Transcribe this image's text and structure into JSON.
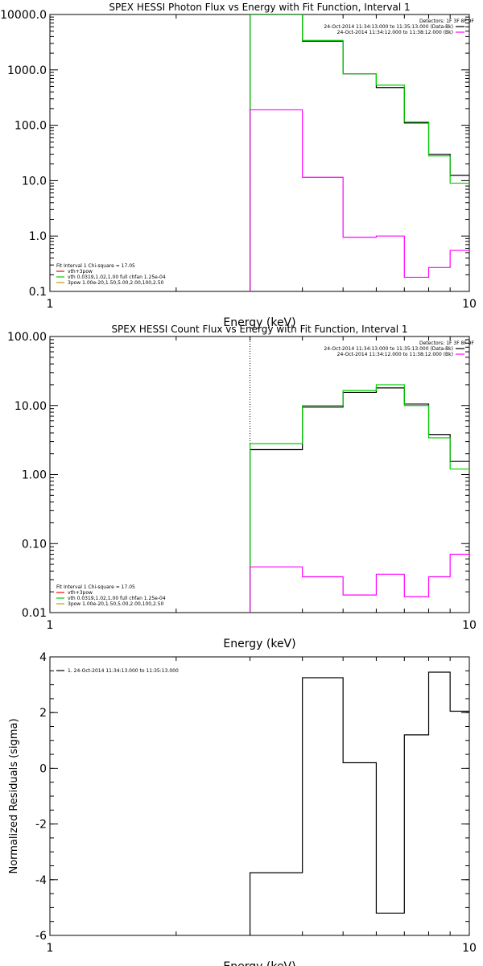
{
  "chart_data": [
    {
      "type": "line",
      "title": "SPEX HESSI Photon Flux vs Energy with Fit Function, Interval 1",
      "xlabel": "Energy (keV)",
      "ylabel": "",
      "xscale": "log",
      "yscale": "log",
      "xlim": [
        1,
        10
      ],
      "ylim": [
        0.1,
        10000
      ],
      "xticks": [
        {
          "value": 1,
          "label": "1"
        },
        {
          "value": 10,
          "label": "10"
        }
      ],
      "yticks": [
        {
          "value": 0.1,
          "label": "0.1"
        },
        {
          "value": 1,
          "label": "1.0"
        },
        {
          "value": 10,
          "label": "10.0"
        },
        {
          "value": 100,
          "label": "100.0"
        },
        {
          "value": 1000,
          "label": "1000.0"
        },
        {
          "value": 10000,
          "label": "10000.0"
        }
      ],
      "bin_edges": [
        3,
        4,
        5,
        6,
        7,
        8,
        9,
        10
      ],
      "vline": {
        "x": 3
      },
      "series": [
        {
          "color": "#000000",
          "values": [
            10000,
            3300,
            850,
            480,
            110,
            30,
            12.5
          ]
        },
        {
          "color": "#00cc00",
          "values": [
            10000,
            3400,
            850,
            530,
            115,
            28,
            9
          ]
        },
        {
          "color": "#ff00ff",
          "values": [
            190,
            11.5,
            0.95,
            1.0,
            0.18,
            0.27,
            0.55
          ]
        }
      ],
      "legend_top": {
        "placement": "top-right",
        "header": "Detectors: 1F 3F 8F 9F",
        "entries": [
          {
            "label": "24-Oct-2014 11:34:13.000 to 11:35:13.000 (Data-Bk)",
            "color": "#000000"
          },
          {
            "label": "24-Oct-2014 11:34:12.000 to 11:38:12.000 (Bk)",
            "color": "#ff00ff"
          }
        ]
      },
      "legend_bottom": {
        "placement": "bottom-left",
        "header": "Fit Interval 1    Chi-square = 17.05",
        "entries": [
          {
            "label": "vth+3pow",
            "color": "#ff0000"
          },
          {
            "label": "vth 0.0319,1.02,1.00  full chfan 1.25e-04",
            "color": "#00cc00"
          },
          {
            "label": "3pow 1.00e-20,1.50,5.00,2.00,100,2.50",
            "color": "#cc9900"
          }
        ]
      }
    },
    {
      "type": "line",
      "title": "SPEX HESSI Count Flux vs Energy with Fit Function, Interval 1",
      "xlabel": "Energy (keV)",
      "ylabel": "",
      "xscale": "log",
      "yscale": "log",
      "xlim": [
        1,
        10
      ],
      "ylim": [
        0.01,
        100
      ],
      "xticks": [
        {
          "value": 1,
          "label": "1"
        },
        {
          "value": 10,
          "label": "10"
        }
      ],
      "yticks": [
        {
          "value": 0.01,
          "label": "0.01"
        },
        {
          "value": 0.1,
          "label": "0.10"
        },
        {
          "value": 1,
          "label": "1.00"
        },
        {
          "value": 10,
          "label": "10.00"
        },
        {
          "value": 100,
          "label": "100.00"
        }
      ],
      "bin_edges": [
        3,
        4,
        5,
        6,
        7,
        8,
        9,
        10
      ],
      "vline": {
        "x": 3,
        "style": "dotted"
      },
      "series": [
        {
          "color": "#000000",
          "values": [
            2.3,
            9.5,
            15.5,
            18,
            10.5,
            3.8,
            1.55
          ]
        },
        {
          "color": "#00cc00",
          "values": [
            2.8,
            10,
            16.5,
            20,
            10,
            3.4,
            1.2
          ]
        },
        {
          "color": "#ff00ff",
          "values": [
            0.046,
            0.033,
            0.018,
            0.036,
            0.017,
            0.033,
            0.07
          ]
        }
      ],
      "legend_top": {
        "placement": "top-right",
        "header": "Detectors: 1F 3F 8F 9F",
        "entries": [
          {
            "label": "24-Oct-2014 11:34:13.000 to 11:35:13.000 (Data-Bk)",
            "color": "#000000"
          },
          {
            "label": "24-Oct-2014 11:34:12.000 to 11:38:12.000 (Bk)",
            "color": "#ff00ff"
          }
        ]
      },
      "legend_bottom": {
        "placement": "bottom-left",
        "header": "Fit Interval 1    Chi-square = 17.05",
        "entries": [
          {
            "label": "vth+3pow",
            "color": "#ff0000"
          },
          {
            "label": "vth 0.0319,1.02,1.00  full chfan 1.25e-04",
            "color": "#00cc00"
          },
          {
            "label": "3pow 1.00e-20,1.50,5.00,2.00,100,2.50",
            "color": "#cc9900"
          }
        ]
      }
    },
    {
      "type": "line",
      "title": "",
      "xlabel": "Energy (keV)",
      "ylabel": "Normalized Residuals (sigma)",
      "xscale": "log",
      "yscale": "linear",
      "xlim": [
        1,
        10
      ],
      "ylim": [
        -6,
        4
      ],
      "xticks": [
        {
          "value": 1,
          "label": "1"
        },
        {
          "value": 10,
          "label": "10"
        }
      ],
      "yticks": [
        {
          "value": -6,
          "label": "-6"
        },
        {
          "value": -4,
          "label": "-4"
        },
        {
          "value": -2,
          "label": "-2"
        },
        {
          "value": 0,
          "label": "0"
        },
        {
          "value": 2,
          "label": "2"
        },
        {
          "value": 4,
          "label": "4"
        }
      ],
      "bin_edges": [
        3,
        4,
        5,
        6,
        7,
        8,
        9,
        10
      ],
      "series": [
        {
          "color": "#000000",
          "values": [
            -3.75,
            3.25,
            0.2,
            -5.2,
            1.2,
            3.45,
            2.05
          ]
        }
      ],
      "legend_top": {
        "placement": "top-left",
        "entries": [
          {
            "label": "1. 24-Oct-2014 11:34:13.000 to 11:35:13.000",
            "color": "#000000"
          }
        ]
      }
    }
  ]
}
